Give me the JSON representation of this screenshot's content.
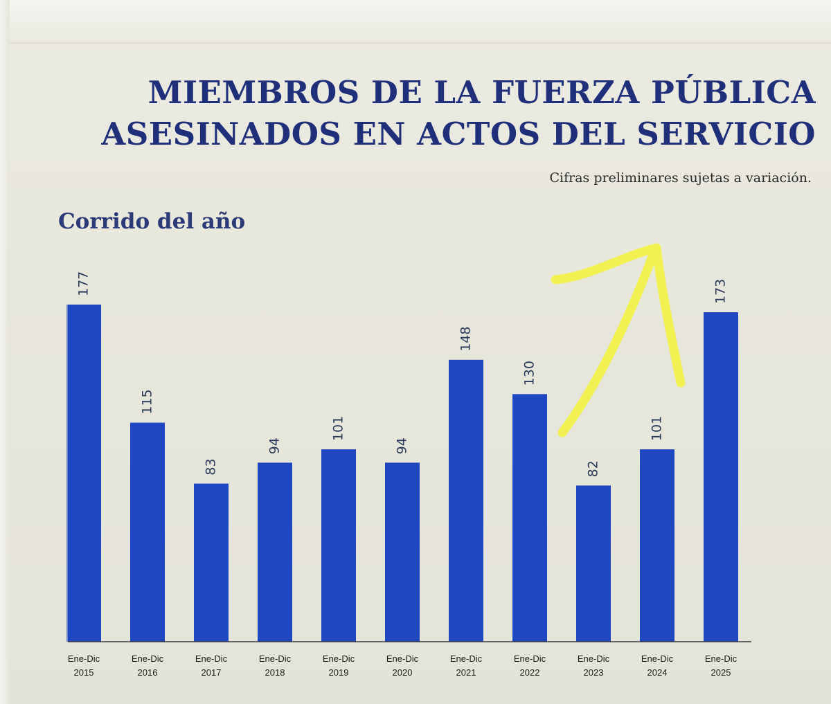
{
  "header": {
    "title_line1": "MIEMBROS DE LA FUERZA PÚBLICA",
    "title_line2": "ASESINADOS EN ACTOS DEL SERVICIO",
    "note": "Cifras preliminares sujetas a variación.",
    "subtitle": "Corrido del año"
  },
  "colors": {
    "bar": "#1f47c2",
    "title": "#1f2f7a",
    "highlight_arrow": "#f2f23a"
  },
  "chart_data": {
    "type": "bar",
    "title": "MIEMBROS DE LA FUERZA PÚBLICA ASESINADOS EN ACTOS DEL SERVICIO",
    "subtitle": "Corrido del año",
    "categories": [
      [
        "Ene-Dic",
        "2015"
      ],
      [
        "Ene-Dic",
        "2016"
      ],
      [
        "Ene-Dic",
        "2017"
      ],
      [
        "Ene-Dic",
        "2018"
      ],
      [
        "Ene-Dic",
        "2019"
      ],
      [
        "Ene-Dic",
        "2020"
      ],
      [
        "Ene-Dic",
        "2021"
      ],
      [
        "Ene-Dic",
        "2022"
      ],
      [
        "Ene-Dic",
        "2023"
      ],
      [
        "Ene-Dic",
        "2024"
      ],
      [
        "Ene-Dic",
        "2025"
      ]
    ],
    "values": [
      177,
      115,
      83,
      94,
      101,
      94,
      148,
      130,
      82,
      101,
      173
    ],
    "data_labels": [
      "177",
      "115",
      "83",
      "94",
      "101",
      "94",
      "148",
      "130",
      "82",
      "101",
      "173"
    ],
    "ylim": [
      0,
      177
    ],
    "grid": false,
    "annotation": "hand-drawn yellow arrow"
  }
}
